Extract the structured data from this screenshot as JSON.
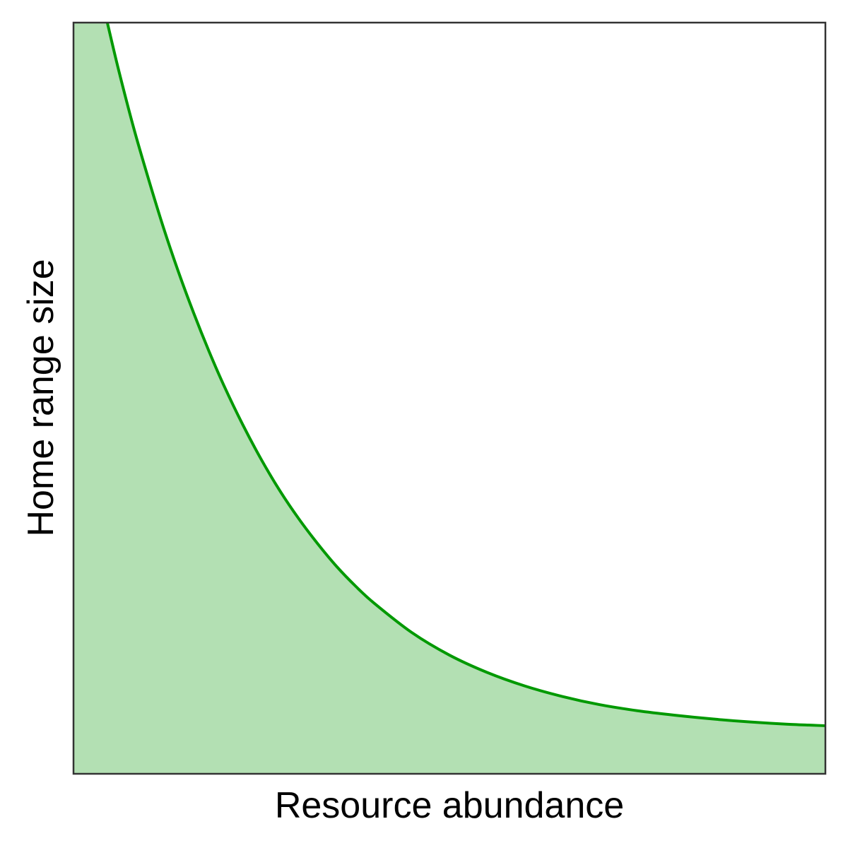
{
  "chart_data": {
    "type": "area",
    "title": "",
    "xlabel": "Resource abundance",
    "ylabel": "Home range size",
    "xlim": [
      0,
      10
    ],
    "ylim": [
      0,
      10
    ],
    "grid": false,
    "legend": "none",
    "x_ticks": [],
    "y_ticks": [],
    "series": [
      {
        "x": [
          0.45,
          0.6,
          0.8,
          1.0,
          1.2,
          1.4,
          1.6,
          1.8,
          2.0,
          2.25,
          2.5,
          2.75,
          3.0,
          3.25,
          3.5,
          3.75,
          4.0,
          4.5,
          5.0,
          5.5,
          6.0,
          6.5,
          7.0,
          7.5,
          8.0,
          8.5,
          9.0,
          9.5,
          10.0
        ],
        "y": [
          10.0,
          9.37,
          8.6,
          7.91,
          7.26,
          6.67,
          6.13,
          5.63,
          5.17,
          4.65,
          4.18,
          3.76,
          3.39,
          3.06,
          2.76,
          2.5,
          2.27,
          1.88,
          1.58,
          1.35,
          1.17,
          1.03,
          0.92,
          0.84,
          0.78,
          0.73,
          0.69,
          0.66,
          0.64
        ]
      }
    ],
    "colors": {
      "line": "#009900",
      "fill": "#b3e0b3",
      "frame": "#333333"
    }
  }
}
